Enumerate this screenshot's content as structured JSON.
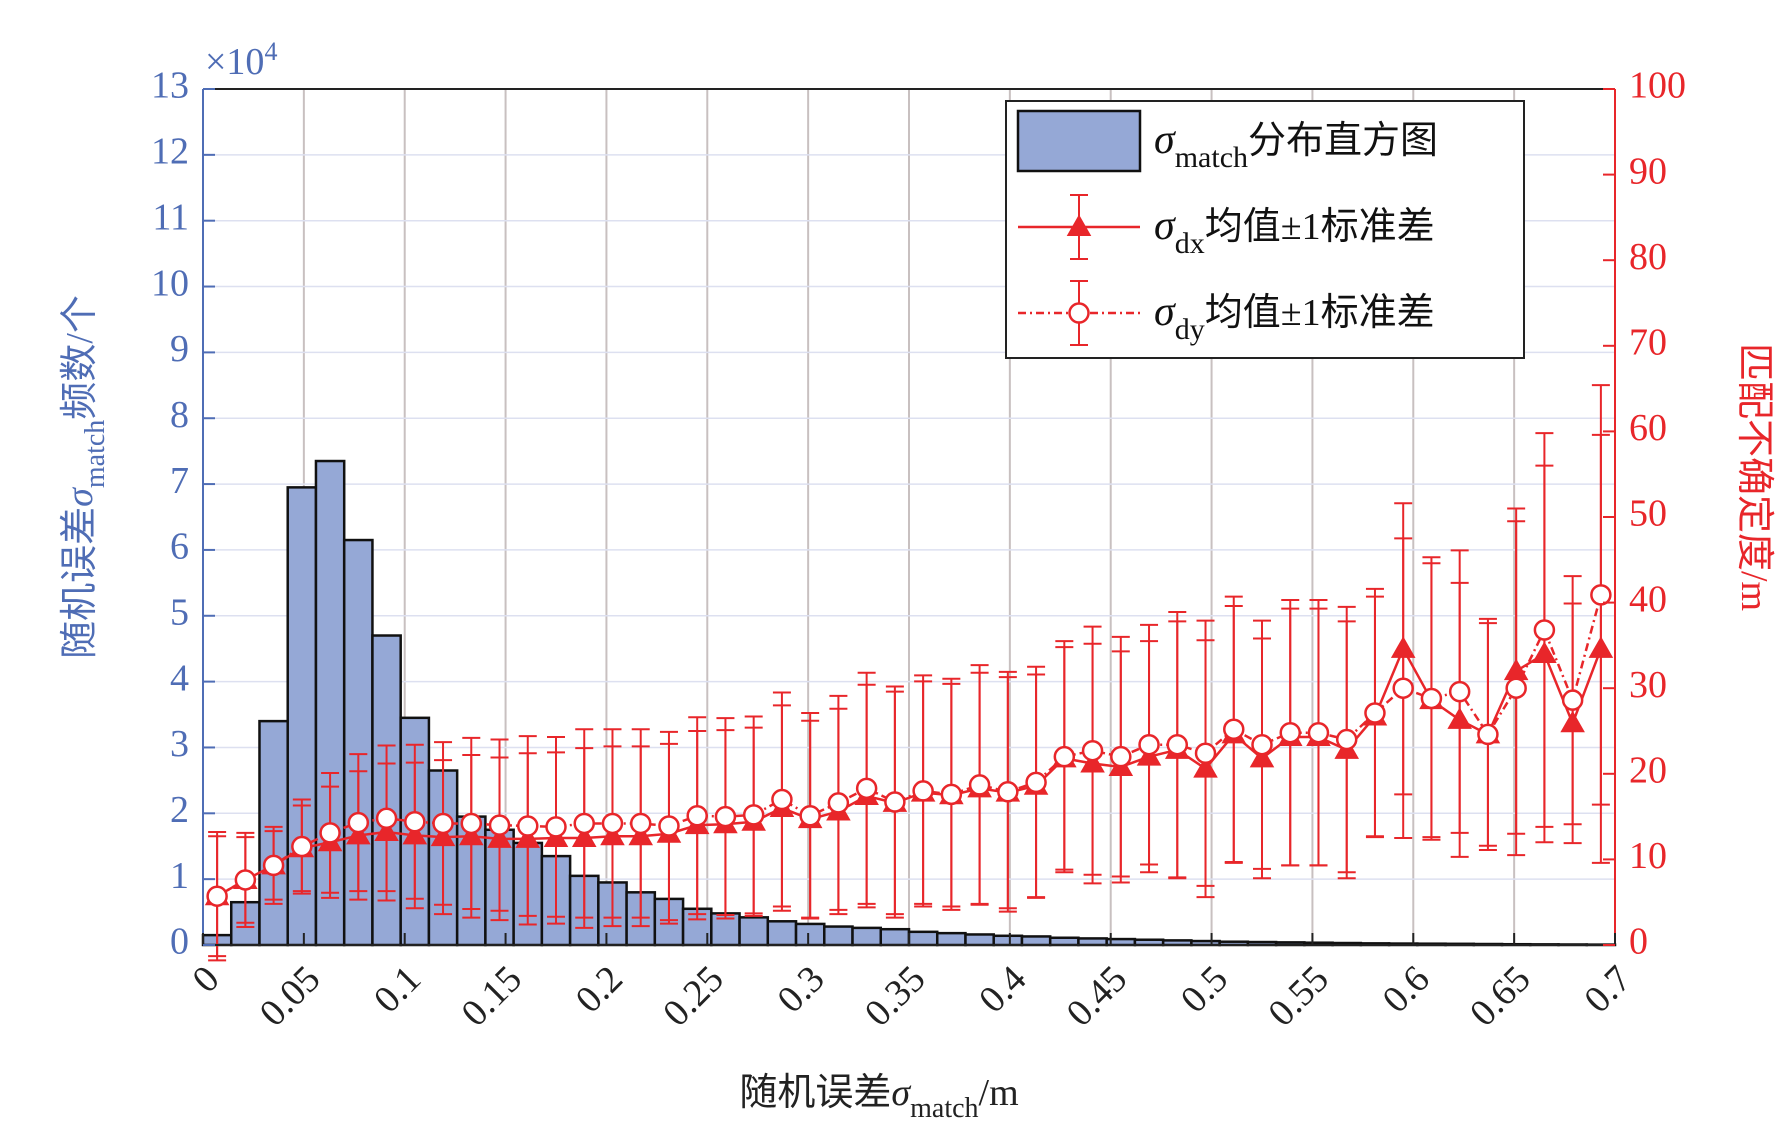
{
  "chart_data": {
    "type": "histogram",
    "xlabel": {
      "pre": "随机误差",
      "symbol": "σ",
      "sub": "match",
      "post": "/m"
    },
    "ylabel": {
      "pre": "随机误差",
      "symbol": "σ",
      "sub": "match",
      "post": "频数/个"
    },
    "y2label": "匹配不确定度/m",
    "y_multiplier": {
      "base": "×10",
      "exponent": "4"
    },
    "xlim": [
      0,
      0.7
    ],
    "xticks": [
      0,
      0.05,
      0.1,
      0.15,
      0.2,
      0.25,
      0.3,
      0.35,
      0.4,
      0.45,
      0.5,
      0.55,
      0.6,
      0.65,
      0.7
    ],
    "ylim": [
      0,
      13
    ],
    "yticks": [
      0,
      1,
      2,
      3,
      4,
      5,
      6,
      7,
      8,
      9,
      10,
      11,
      12,
      13
    ],
    "y2lim": [
      0,
      100
    ],
    "y2ticks": [
      0,
      10,
      20,
      30,
      40,
      50,
      60,
      70,
      80,
      90,
      100
    ],
    "grid": true,
    "legend": "upper right",
    "series": [
      {
        "type": "histogram",
        "name": {
          "symbol": "σ",
          "sub": "match",
          "text": "分布直方图"
        },
        "color": "#95a8d6",
        "edgecolor": "#111111",
        "bins": [
          0,
          0.014,
          0.028,
          0.042,
          0.056,
          0.07,
          0.084,
          0.098,
          0.112,
          0.126,
          0.14,
          0.154,
          0.168,
          0.182,
          0.196,
          0.21,
          0.224,
          0.238,
          0.252,
          0.266,
          0.28,
          0.294,
          0.308,
          0.322,
          0.336,
          0.35,
          0.364,
          0.378,
          0.392,
          0.406,
          0.42,
          0.434,
          0.448,
          0.462,
          0.476,
          0.49,
          0.504,
          0.518,
          0.532,
          0.546,
          0.56,
          0.574,
          0.588,
          0.602,
          0.616,
          0.63,
          0.644,
          0.658,
          0.672,
          0.686,
          0.7
        ],
        "values": [
          0.15,
          0.65,
          3.4,
          6.95,
          7.35,
          6.15,
          4.7,
          3.45,
          2.65,
          1.95,
          1.75,
          1.55,
          1.35,
          1.05,
          0.95,
          0.8,
          0.7,
          0.55,
          0.48,
          0.42,
          0.36,
          0.32,
          0.28,
          0.26,
          0.24,
          0.2,
          0.18,
          0.16,
          0.14,
          0.13,
          0.11,
          0.1,
          0.09,
          0.08,
          0.07,
          0.06,
          0.05,
          0.045,
          0.04,
          0.035,
          0.03,
          0.025,
          0.022,
          0.02,
          0.018,
          0.015,
          0.012,
          0.01,
          0.008,
          0.006
        ]
      },
      {
        "type": "errorbar",
        "name": {
          "symbol": "σ",
          "sub": "dx",
          "text": "均值±1标准差"
        },
        "color": "#e8262a",
        "marker": "triangle",
        "linestyle": "solid",
        "axis": "y2",
        "x": [
          0.007,
          0.021,
          0.035,
          0.049,
          0.063,
          0.077,
          0.091,
          0.105,
          0.119,
          0.133,
          0.147,
          0.161,
          0.175,
          0.189,
          0.203,
          0.217,
          0.231,
          0.245,
          0.259,
          0.273,
          0.287,
          0.301,
          0.315,
          0.329,
          0.343,
          0.357,
          0.371,
          0.385,
          0.399,
          0.413,
          0.427,
          0.441,
          0.455,
          0.469,
          0.483,
          0.497,
          0.511,
          0.525,
          0.539,
          0.553,
          0.567,
          0.581,
          0.595,
          0.609,
          0.623,
          0.637,
          0.651,
          0.665,
          0.679,
          0.693
        ],
        "values": [
          5.7,
          7.6,
          9.3,
          11.3,
          12.0,
          12.8,
          13.2,
          12.8,
          12.6,
          12.7,
          12.4,
          12.4,
          12.5,
          12.5,
          12.7,
          12.7,
          13.0,
          14.0,
          14.1,
          14.4,
          16.0,
          14.7,
          15.6,
          17.4,
          16.6,
          17.8,
          17.5,
          18.3,
          17.8,
          18.6,
          21.8,
          21.2,
          20.8,
          22.0,
          22.8,
          20.6,
          24.6,
          21.8,
          24.3,
          24.3,
          22.8,
          26.7,
          34.6,
          28.6,
          26.3,
          24.6,
          32.0,
          34.0,
          25.9,
          34.6
        ],
        "errors": [
          7,
          5,
          4,
          5,
          6.5,
          7.5,
          8,
          8.5,
          9,
          9.5,
          9.5,
          10,
          10,
          10.5,
          10.5,
          10.5,
          10.5,
          11,
          11,
          11,
          12,
          11.5,
          12,
          13,
          13,
          13,
          13,
          13.5,
          13.5,
          13,
          13,
          14,
          13.5,
          13.5,
          15,
          15,
          15,
          14,
          15,
          15,
          15,
          14,
          17,
          16,
          16,
          13,
          19,
          22,
          14,
          25
        ]
      },
      {
        "type": "errorbar",
        "name": {
          "symbol": "σ",
          "sub": "dy",
          "text": "均值±1标准差"
        },
        "color": "#e8262a",
        "marker": "circle",
        "linestyle": "dashdot",
        "axis": "y2",
        "x": [
          0.007,
          0.021,
          0.035,
          0.049,
          0.063,
          0.077,
          0.091,
          0.105,
          0.119,
          0.133,
          0.147,
          0.161,
          0.175,
          0.189,
          0.203,
          0.217,
          0.231,
          0.245,
          0.259,
          0.273,
          0.287,
          0.301,
          0.315,
          0.329,
          0.343,
          0.357,
          0.371,
          0.385,
          0.399,
          0.413,
          0.427,
          0.441,
          0.455,
          0.469,
          0.483,
          0.497,
          0.511,
          0.525,
          0.539,
          0.553,
          0.567,
          0.581,
          0.595,
          0.609,
          0.623,
          0.637,
          0.651,
          0.665,
          0.679,
          0.693
        ],
        "values": [
          5.7,
          7.6,
          9.3,
          11.5,
          13.1,
          14.3,
          14.8,
          14.4,
          14.2,
          14.2,
          14.0,
          13.9,
          13.8,
          14.2,
          14.2,
          14.2,
          13.9,
          15.1,
          15.0,
          15.2,
          17.0,
          15.1,
          16.6,
          18.3,
          16.7,
          18.0,
          17.6,
          18.7,
          17.9,
          19.0,
          22.0,
          22.7,
          22.0,
          23.4,
          23.4,
          22.4,
          25.2,
          23.4,
          24.8,
          24.8,
          24.0,
          27.1,
          30.0,
          28.8,
          29.6,
          24.6,
          30.0,
          36.8,
          28.6,
          40.9
        ],
        "errors": [
          7.5,
          5.5,
          4.5,
          5.5,
          7,
          8,
          8.5,
          9,
          9.5,
          10,
          10,
          10.5,
          10.5,
          11,
          11,
          11,
          11,
          11.5,
          11.5,
          11.5,
          12.5,
          12,
          12.5,
          13.5,
          13.5,
          13.5,
          13.5,
          14,
          14,
          13.5,
          13.5,
          14.5,
          14,
          14,
          15.5,
          15.5,
          15.5,
          14.5,
          15.5,
          15.5,
          15.5,
          14.5,
          17.5,
          16.5,
          16.5,
          13.5,
          19.5,
          23,
          14.5,
          24.5
        ]
      }
    ]
  }
}
